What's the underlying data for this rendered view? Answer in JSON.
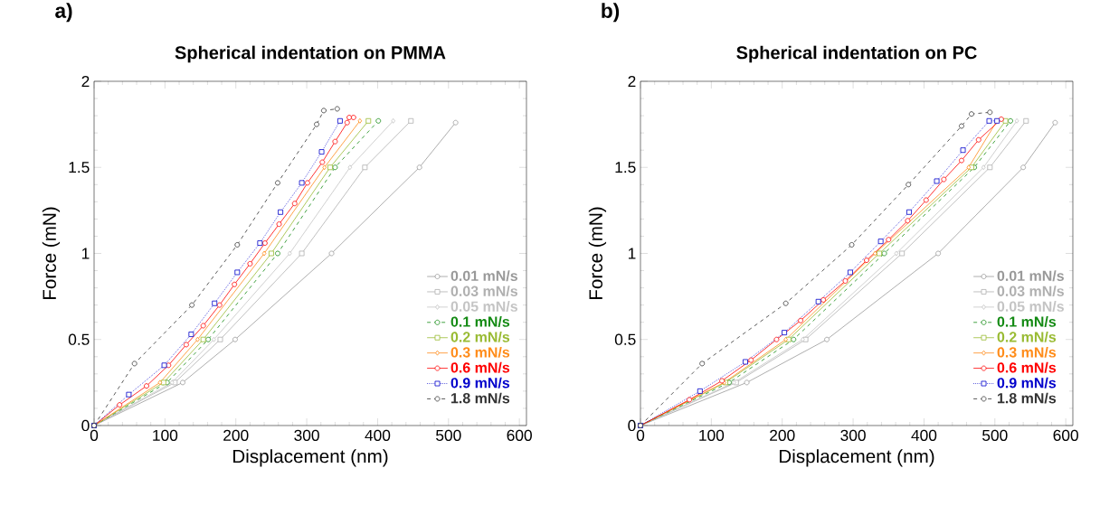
{
  "chart_data": [
    {
      "type": "line",
      "title": "Spherical indentation on PMMA",
      "xlabel": "Displacement (nm)",
      "ylabel": "Force (mN)",
      "annotations": [
        "a)"
      ],
      "xlim": [
        0,
        610
      ],
      "ylim": [
        0,
        2
      ],
      "xticks": [
        0,
        100,
        200,
        300,
        400,
        500,
        600
      ],
      "yticks": [
        0,
        0.5,
        1,
        1.5,
        2
      ],
      "legend": "bottom right",
      "series": [
        {
          "name": "0.01 mN/s",
          "color": "#999999",
          "marker": "circle",
          "line_style": "solid",
          "x": [
            0,
            125,
            199,
            335,
            459,
            510
          ],
          "values": [
            0,
            0.25,
            0.5,
            1,
            1.5,
            1.76
          ]
        },
        {
          "name": "0.03 mN/s",
          "color": "#b0b0b0",
          "marker": "square",
          "line_style": "solid",
          "x": [
            0,
            114,
            178,
            293,
            382,
            447
          ],
          "values": [
            0,
            0.25,
            0.5,
            1,
            1.5,
            1.77
          ]
        },
        {
          "name": "0.05 mN/s",
          "color": "#c4c4c4",
          "marker": "diamond",
          "line_style": "solid",
          "x": [
            0,
            110,
            169,
            276,
            361,
            422
          ],
          "values": [
            0,
            0.25,
            0.5,
            1,
            1.5,
            1.77
          ]
        },
        {
          "name": "0.1 mN/s",
          "color": "#138a13",
          "marker": "circle",
          "line_style": "dashed",
          "x": [
            0,
            103,
            161,
            259,
            340,
            401
          ],
          "values": [
            0,
            0.25,
            0.5,
            1,
            1.5,
            1.77
          ]
        },
        {
          "name": "0.2 mN/s",
          "color": "#99bb33",
          "marker": "square",
          "line_style": "solid",
          "x": [
            0,
            98,
            154,
            250,
            333,
            387
          ],
          "values": [
            0,
            0.25,
            0.5,
            1,
            1.5,
            1.77
          ]
        },
        {
          "name": "0.3 mN/s",
          "color": "#ff8c1a",
          "marker": "diamond",
          "line_style": "solid",
          "x": [
            0,
            93,
            146,
            240,
            325,
            375
          ],
          "values": [
            0,
            0.25,
            0.5,
            1,
            1.5,
            1.77
          ]
        },
        {
          "name": "0.6 mN/s",
          "color": "#ff0000",
          "marker": "circle",
          "line_style": "solid",
          "x": [
            0,
            36,
            74,
            105,
            130,
            154,
            177,
            198,
            220,
            241,
            261,
            283,
            301,
            322,
            340,
            357,
            360,
            366
          ],
          "values": [
            0,
            0.12,
            0.23,
            0.35,
            0.47,
            0.58,
            0.7,
            0.82,
            0.94,
            1.06,
            1.17,
            1.29,
            1.41,
            1.53,
            1.65,
            1.76,
            1.79,
            1.79
          ]
        },
        {
          "name": "0.9 mN/s",
          "color": "#0000cc",
          "marker": "square",
          "line_style": "dotted",
          "x": [
            0,
            49,
            99,
            137,
            170,
            202,
            234,
            263,
            293,
            321,
            347
          ],
          "values": [
            0,
            0.18,
            0.35,
            0.53,
            0.71,
            0.89,
            1.06,
            1.24,
            1.41,
            1.59,
            1.77
          ]
        },
        {
          "name": "1.8 mN/s",
          "color": "#333333",
          "marker": "circle",
          "line_style": "dashed",
          "x": [
            0,
            57,
            138,
            202,
            259,
            314,
            324,
            343
          ],
          "values": [
            0,
            0.36,
            0.7,
            1.05,
            1.41,
            1.75,
            1.83,
            1.84
          ]
        }
      ]
    },
    {
      "type": "line",
      "title": "Spherical indentation on PC",
      "xlabel": "Displacement (nm)",
      "ylabel": "Force (mN)",
      "annotations": [
        "b)"
      ],
      "xlim": [
        0,
        610
      ],
      "ylim": [
        0,
        2
      ],
      "xticks": [
        0,
        100,
        200,
        300,
        400,
        500,
        600
      ],
      "yticks": [
        0,
        0.5,
        1,
        1.5,
        2
      ],
      "legend": "bottom right",
      "series": [
        {
          "name": "0.01 mN/s",
          "color": "#999999",
          "marker": "circle",
          "line_style": "solid",
          "x": [
            0,
            150,
            263,
            420,
            540,
            585
          ],
          "values": [
            0,
            0.25,
            0.5,
            1,
            1.5,
            1.76
          ]
        },
        {
          "name": "0.03 mN/s",
          "color": "#b0b0b0",
          "marker": "square",
          "line_style": "solid",
          "x": [
            0,
            135,
            233,
            369,
            493,
            544
          ],
          "values": [
            0,
            0.25,
            0.5,
            1,
            1.5,
            1.77
          ]
        },
        {
          "name": "0.05 mN/s",
          "color": "#c4c4c4",
          "marker": "diamond",
          "line_style": "solid",
          "x": [
            0,
            132,
            229,
            361,
            484,
            531
          ],
          "values": [
            0,
            0.25,
            0.5,
            1,
            1.5,
            1.77
          ]
        },
        {
          "name": "0.1 mN/s",
          "color": "#138a13",
          "marker": "circle",
          "line_style": "dashed",
          "x": [
            0,
            125,
            216,
            344,
            471,
            522
          ],
          "values": [
            0,
            0.25,
            0.5,
            1,
            1.5,
            1.77
          ]
        },
        {
          "name": "0.2 mN/s",
          "color": "#99bb33",
          "marker": "square",
          "line_style": "solid",
          "x": [
            0,
            120,
            209,
            337,
            467,
            515
          ],
          "values": [
            0,
            0.25,
            0.5,
            1,
            1.5,
            1.77
          ]
        },
        {
          "name": "0.3 mN/s",
          "color": "#ff8c1a",
          "marker": "diamond",
          "line_style": "solid",
          "x": [
            0,
            118,
            205,
            331,
            463,
            503
          ],
          "values": [
            0,
            0.25,
            0.5,
            1,
            1.5,
            1.77
          ]
        },
        {
          "name": "0.6 mN/s",
          "color": "#ff0000",
          "marker": "circle",
          "line_style": "solid",
          "x": [
            0,
            69,
            115,
            156,
            192,
            226,
            258,
            289,
            319,
            350,
            377,
            403,
            428,
            453,
            477,
            509
          ],
          "values": [
            0,
            0.15,
            0.26,
            0.38,
            0.5,
            0.61,
            0.73,
            0.84,
            0.96,
            1.08,
            1.19,
            1.31,
            1.43,
            1.54,
            1.66,
            1.78
          ]
        },
        {
          "name": "0.9 mN/s",
          "color": "#0000cc",
          "marker": "square",
          "line_style": "dotted",
          "x": [
            0,
            84,
            148,
            203,
            251,
            296,
            339,
            379,
            418,
            455,
            492,
            503
          ],
          "values": [
            0,
            0.2,
            0.37,
            0.54,
            0.72,
            0.89,
            1.07,
            1.24,
            1.42,
            1.6,
            1.77,
            1.77
          ]
        },
        {
          "name": "1.8 mN/s",
          "color": "#333333",
          "marker": "circle",
          "line_style": "dashed",
          "x": [
            0,
            87,
            205,
            298,
            378,
            453,
            467,
            493
          ],
          "values": [
            0,
            0.36,
            0.71,
            1.05,
            1.4,
            1.74,
            1.81,
            1.82
          ]
        }
      ]
    }
  ]
}
